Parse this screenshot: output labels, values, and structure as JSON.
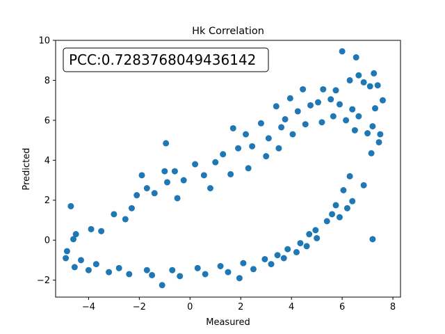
{
  "chart_data": {
    "type": "scatter",
    "title": "Hk Correlation",
    "xlabel": "Measured",
    "ylabel": "Predicted",
    "xlim": [
      -5.3,
      8.3
    ],
    "ylim": [
      -2.85,
      10.0
    ],
    "xticks": [
      -4,
      -2,
      0,
      2,
      4,
      6,
      8
    ],
    "xtick_labels": [
      "−4",
      "−2",
      "0",
      "2",
      "4",
      "6",
      "8"
    ],
    "yticks": [
      -2,
      0,
      2,
      4,
      6,
      8,
      10
    ],
    "ytick_labels": [
      "−2",
      "0",
      "2",
      "4",
      "6",
      "8",
      "10"
    ],
    "annotation": "PCC:0.7283768049436142",
    "grid": false,
    "marker_color": "#1f77b4",
    "points": [
      [
        -4.7,
        1.7
      ],
      [
        -1.1,
        -2.25
      ],
      [
        -0.95,
        4.85
      ],
      [
        6.0,
        9.45
      ],
      [
        6.55,
        9.15
      ],
      [
        7.2,
        0.05
      ],
      [
        7.25,
        8.35
      ],
      [
        7.6,
        7.0
      ],
      [
        7.5,
        5.3
      ],
      [
        7.45,
        4.9
      ],
      [
        7.15,
        4.35
      ],
      [
        1.95,
        -1.9
      ],
      [
        -4.5,
        0.3
      ],
      [
        -3.0,
        1.3
      ],
      [
        -1.9,
        3.25
      ],
      [
        -1.0,
        3.45
      ],
      [
        -0.6,
        3.45
      ],
      [
        0.2,
        3.8
      ],
      [
        1.3,
        4.3
      ],
      [
        1.7,
        5.6
      ],
      [
        2.2,
        5.3
      ],
      [
        2.8,
        5.85
      ],
      [
        3.4,
        6.7
      ],
      [
        3.95,
        7.1
      ],
      [
        4.45,
        7.55
      ],
      [
        5.25,
        7.55
      ],
      [
        5.75,
        7.5
      ],
      [
        6.3,
        8.0
      ],
      [
        6.65,
        8.25
      ],
      [
        6.85,
        7.9
      ],
      [
        7.1,
        7.7
      ],
      [
        7.4,
        7.75
      ],
      [
        7.3,
        6.6
      ],
      [
        7.2,
        5.7
      ],
      [
        7.0,
        5.35
      ],
      [
        6.85,
        2.75
      ],
      [
        6.4,
        1.95
      ],
      [
        6.2,
        1.6
      ],
      [
        5.9,
        1.15
      ],
      [
        5.6,
        1.3
      ],
      [
        4.95,
        0.5
      ],
      [
        4.6,
        -0.3
      ],
      [
        4.2,
        -0.6
      ],
      [
        3.7,
        -0.9
      ],
      [
        3.2,
        -1.2
      ],
      [
        2.5,
        -1.45
      ],
      [
        1.5,
        -1.6
      ],
      [
        0.6,
        -1.7
      ],
      [
        -0.4,
        -1.8
      ],
      [
        -1.5,
        -1.75
      ],
      [
        -2.4,
        -1.7
      ],
      [
        -3.2,
        -1.6
      ],
      [
        -4.0,
        -1.5
      ],
      [
        -4.55,
        -1.35
      ],
      [
        -4.9,
        -0.9
      ],
      [
        -4.85,
        -0.55
      ],
      [
        -4.6,
        0.05
      ],
      [
        -3.9,
        0.55
      ],
      [
        -3.5,
        0.45
      ],
      [
        -2.55,
        1.05
      ],
      [
        -2.3,
        1.6
      ],
      [
        -2.1,
        2.25
      ],
      [
        -1.7,
        2.6
      ],
      [
        -1.4,
        2.35
      ],
      [
        -0.9,
        2.9
      ],
      [
        -0.25,
        3.0
      ],
      [
        0.55,
        3.25
      ],
      [
        1.0,
        3.9
      ],
      [
        1.9,
        4.6
      ],
      [
        2.45,
        4.7
      ],
      [
        3.1,
        5.1
      ],
      [
        3.6,
        5.65
      ],
      [
        3.75,
        6.05
      ],
      [
        4.25,
        6.45
      ],
      [
        4.75,
        6.75
      ],
      [
        5.05,
        6.9
      ],
      [
        5.55,
        7.05
      ],
      [
        5.9,
        6.8
      ],
      [
        6.4,
        6.55
      ],
      [
        6.65,
        6.2
      ],
      [
        6.3,
        3.2
      ],
      [
        6.05,
        2.5
      ],
      [
        5.75,
        1.75
      ],
      [
        5.4,
        0.95
      ],
      [
        5.0,
        0.1
      ],
      [
        4.7,
        0.3
      ],
      [
        4.35,
        -0.15
      ],
      [
        3.85,
        -0.45
      ],
      [
        3.45,
        -0.75
      ],
      [
        2.95,
        -0.95
      ],
      [
        2.1,
        -1.15
      ],
      [
        1.2,
        -1.3
      ],
      [
        0.3,
        -1.4
      ],
      [
        -0.7,
        -1.5
      ],
      [
        -1.7,
        -1.5
      ],
      [
        -2.8,
        -1.4
      ],
      [
        -3.7,
        -1.2
      ],
      [
        -4.3,
        -1.0
      ],
      [
        -0.5,
        2.1
      ],
      [
        0.8,
        2.6
      ],
      [
        1.6,
        3.3
      ],
      [
        2.3,
        3.6
      ],
      [
        3.0,
        4.2
      ],
      [
        3.5,
        4.6
      ],
      [
        4.05,
        5.3
      ],
      [
        4.55,
        5.8
      ],
      [
        5.2,
        5.9
      ],
      [
        5.65,
        6.2
      ],
      [
        6.15,
        6.0
      ],
      [
        6.5,
        5.5
      ]
    ]
  }
}
